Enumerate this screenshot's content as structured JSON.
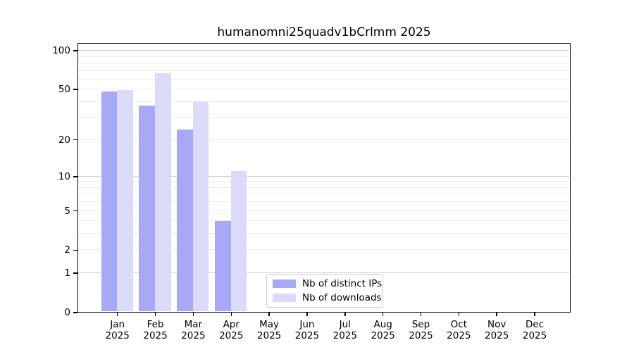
{
  "chart_data": {
    "type": "bar",
    "title": "humanomni25quadv1bCrlmm 2025",
    "categories": [
      "Jan 2025",
      "Feb 2025",
      "Mar 2025",
      "Apr 2025",
      "May 2025",
      "Jun 2025",
      "Jul 2025",
      "Aug 2025",
      "Sep 2025",
      "Oct 2025",
      "Nov 2025",
      "Dec 2025"
    ],
    "series": [
      {
        "name": "Nb of distinct IPs",
        "color": "#a8a8f6",
        "values": [
          48,
          37,
          24,
          4,
          0,
          0,
          0,
          0,
          0,
          0,
          0,
          0
        ]
      },
      {
        "name": "Nb of downloads",
        "color": "#dbdbf9",
        "values": [
          49,
          67,
          40,
          11,
          0,
          0,
          0,
          0,
          0,
          0,
          0,
          0
        ]
      }
    ],
    "xlabel": "",
    "ylabel": "",
    "yscale": "log1p",
    "ylim": [
      0,
      115
    ],
    "yticks": [
      0,
      1,
      2,
      5,
      10,
      20,
      50,
      100
    ],
    "major_gridlines": [
      1,
      10,
      100
    ],
    "minor_gridlines": [
      2,
      3,
      4,
      5,
      6,
      7,
      8,
      9,
      20,
      30,
      40,
      50,
      60,
      70,
      80,
      90
    ],
    "grid": "horizontal",
    "legend_position": "lower-center-inside"
  },
  "colors": {
    "background": "#ffffff",
    "axis": "#000000",
    "text": "#000000",
    "grid_major": "#cccccc",
    "grid_minor": "#ececec",
    "legend_border": "#cccccc",
    "bar_distinct_ips": "#a8a8f6",
    "bar_downloads": "#dbdbf9"
  }
}
